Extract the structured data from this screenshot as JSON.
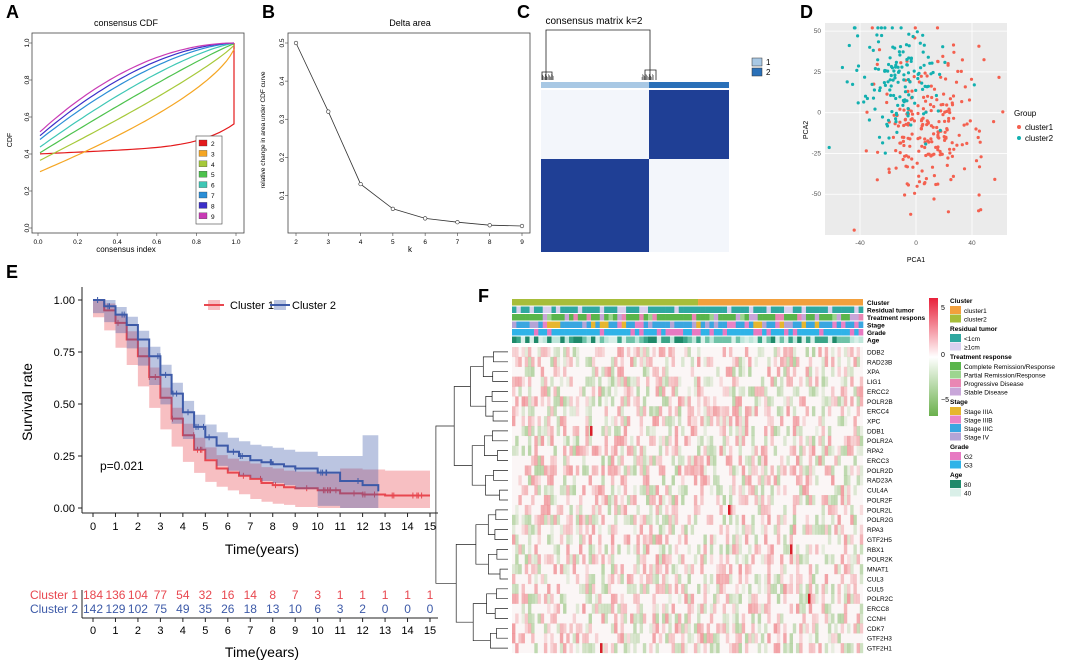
{
  "colors": {
    "cluster1": "#e8474f",
    "cluster2": "#3d5aa8",
    "pca1": "#f4604f",
    "pca2": "#13b0b0",
    "matrix": "#1f3f95",
    "matrixLight": "#a8c8e4",
    "hmRed": "#e84850",
    "hmGreen": "#6ab04c"
  },
  "panel_letters": {
    "A": "A",
    "B": "B",
    "C": "C",
    "D": "D",
    "E": "E",
    "F": "F"
  },
  "chart_data": [
    {
      "id": "A",
      "type": "line",
      "title": "consensus CDF",
      "xlabel": "consensus index",
      "ylabel": "CDF",
      "xlim": [
        0,
        1
      ],
      "ylim": [
        0,
        1
      ],
      "xticks": [
        "0.0",
        "0.2",
        "0.4",
        "0.6",
        "0.8",
        "1.0"
      ],
      "yticks": [
        "0.0",
        "0.2",
        "0.4",
        "0.6",
        "0.8",
        "1.0"
      ],
      "legend": [
        {
          "k": "2",
          "color": "#e41a1c"
        },
        {
          "k": "3",
          "color": "#f5a623"
        },
        {
          "k": "4",
          "color": "#a6c93a"
        },
        {
          "k": "5",
          "color": "#4dc24d"
        },
        {
          "k": "6",
          "color": "#3ec7b5"
        },
        {
          "k": "7",
          "color": "#2b8ed6"
        },
        {
          "k": "8",
          "color": "#3b2fc9"
        },
        {
          "k": "9",
          "color": "#c93bb5"
        }
      ],
      "series": [
        {
          "name": "2",
          "start": 0.4,
          "power": 0.4,
          "end": 0.58
        },
        {
          "name": "3",
          "start": 0.3,
          "power": 0.65,
          "end": 1.0
        },
        {
          "name": "4",
          "start": 0.36,
          "power": 0.85,
          "end": 1.0
        },
        {
          "name": "5",
          "start": 0.4,
          "power": 1.1,
          "end": 1.0
        },
        {
          "name": "6",
          "start": 0.43,
          "power": 1.35,
          "end": 1.0
        },
        {
          "name": "7",
          "start": 0.47,
          "power": 1.6,
          "end": 1.0
        },
        {
          "name": "8",
          "start": 0.49,
          "power": 1.8,
          "end": 1.0
        },
        {
          "name": "9",
          "start": 0.51,
          "power": 2.0,
          "end": 1.0
        }
      ]
    },
    {
      "id": "B",
      "type": "line",
      "title": "Delta area",
      "xlabel": "k",
      "ylabel": "relative change in area under CDF curve",
      "x": [
        2,
        3,
        4,
        5,
        6,
        7,
        8,
        9
      ],
      "y": [
        0.5,
        0.32,
        0.13,
        0.065,
        0.04,
        0.03,
        0.022,
        0.02
      ],
      "xlim": [
        2,
        9
      ],
      "ylim": [
        0.02,
        0.5
      ],
      "yticks": [
        "0.1",
        "0.2",
        "0.3",
        "0.4",
        "0.5"
      ],
      "xticks": [
        "2",
        "3",
        "4",
        "5",
        "6",
        "7",
        "8",
        "9"
      ]
    },
    {
      "id": "C",
      "type": "heatmap",
      "title": "consensus matrix k=2",
      "legend": [
        "1",
        "2"
      ],
      "cluster_fraction": [
        0.52,
        0.48
      ]
    },
    {
      "id": "D",
      "type": "scatter",
      "xlabel": "PCA1",
      "ylabel": "PCA2",
      "xticks": [
        "-40",
        "0",
        "40"
      ],
      "yticks": [
        "50",
        "25",
        "0",
        "-25",
        "-50"
      ],
      "xlim": [
        -65,
        65
      ],
      "ylim": [
        -75,
        55
      ],
      "legend_title": "Group",
      "groups": [
        {
          "name": "cluster1",
          "n": 230,
          "mean": [
            10,
            -8
          ],
          "sd": [
            20,
            22
          ]
        },
        {
          "name": "cluster2",
          "n": 150,
          "mean": [
            -12,
            20
          ],
          "sd": [
            17,
            17
          ]
        }
      ]
    },
    {
      "id": "E",
      "type": "line",
      "xlabel": "Time(years)",
      "ylabel": "Survival rate",
      "pvalue": "p=0.021",
      "xticks": [
        "0",
        "1",
        "2",
        "3",
        "4",
        "5",
        "6",
        "7",
        "8",
        "9",
        "10",
        "11",
        "12",
        "13",
        "14",
        "15"
      ],
      "yticks": [
        "0.00",
        "0.25",
        "0.50",
        "0.75",
        "1.00"
      ],
      "series": [
        {
          "name": "Cluster 1",
          "x": [
            0,
            0.5,
            1,
            1.5,
            2,
            2.5,
            3,
            3.5,
            4,
            4.5,
            5,
            5.5,
            6,
            6.5,
            7,
            7.5,
            8,
            8.5,
            9,
            10,
            11,
            12,
            13,
            15
          ],
          "y": [
            1.0,
            0.95,
            0.89,
            0.81,
            0.73,
            0.63,
            0.53,
            0.43,
            0.35,
            0.28,
            0.23,
            0.19,
            0.17,
            0.155,
            0.14,
            0.12,
            0.11,
            0.1,
            0.095,
            0.085,
            0.07,
            0.065,
            0.06,
            0.06
          ]
        },
        {
          "name": "Cluster 2",
          "x": [
            0,
            0.5,
            1,
            1.5,
            2,
            2.5,
            3,
            3.5,
            4,
            4.5,
            5,
            5.5,
            6,
            6.5,
            7,
            7.5,
            8,
            8.5,
            9,
            10,
            11,
            12,
            12.7
          ],
          "y": [
            1.0,
            0.97,
            0.93,
            0.88,
            0.81,
            0.73,
            0.64,
            0.55,
            0.46,
            0.39,
            0.34,
            0.3,
            0.27,
            0.25,
            0.23,
            0.22,
            0.21,
            0.2,
            0.19,
            0.17,
            0.13,
            0.11,
            0.08
          ]
        }
      ],
      "risk_table": {
        "rows": [
          {
            "label": "Cluster 1",
            "values": [
              "184",
              "136",
              "104",
              "77",
              "54",
              "32",
              "16",
              "14",
              "8",
              "7",
              "3",
              "1",
              "1",
              "1",
              "1",
              "1"
            ]
          },
          {
            "label": "Cluster 2",
            "values": [
              "142",
              "129",
              "102",
              "75",
              "49",
              "35",
              "26",
              "18",
              "13",
              "10",
              "6",
              "3",
              "2",
              "0",
              "0",
              "0"
            ]
          }
        ]
      }
    },
    {
      "id": "F",
      "type": "heatmap",
      "annotation_rows": [
        "Cluster",
        "Residual tumor",
        "Treatment respons",
        "Stage",
        "Grade",
        "Age"
      ],
      "genes": [
        "DDB2",
        "RAD23B",
        "XPA",
        "LIG1",
        "ERCC2",
        "POLR2B",
        "ERCC4",
        "XPC",
        "DDB1",
        "POLR2A",
        "RPA2",
        "ERCC3",
        "POLR2D",
        "RAD23A",
        "CUL4A",
        "POLR2F",
        "POLR2L",
        "POLR2G",
        "RPA3",
        "GTF2H5",
        "RBX1",
        "POLR2K",
        "MNAT1",
        "CUL3",
        "CUL5",
        "POLR2C",
        "ERCC8",
        "CCNH",
        "CDK7",
        "GTF2H3",
        "GTF2H1"
      ],
      "color_scale_ticks": [
        "5",
        "0",
        "−5"
      ],
      "legends": [
        {
          "title": "Cluster",
          "items": [
            {
              "label": "cluster1",
              "color": "#f2a03d"
            },
            {
              "label": "cluster2",
              "color": "#a7bd3a"
            }
          ]
        },
        {
          "title": "Residual tumor",
          "items": [
            {
              "label": "<1cm",
              "color": "#2fa8a0"
            },
            {
              "label": "≥1cm",
              "color": "#d9d0ef"
            }
          ]
        },
        {
          "title": "Treatment response",
          "items": [
            {
              "label": "Complete Remission/Response",
              "color": "#5ab54b"
            },
            {
              "label": "Partial Remission/Response",
              "color": "#9dd58f"
            },
            {
              "label": "Progressive Disease",
              "color": "#e987b4"
            },
            {
              "label": "Stable Disease",
              "color": "#c8a6d9"
            }
          ]
        },
        {
          "title": "Stage",
          "items": [
            {
              "label": "Stage IIIA",
              "color": "#e6b62f"
            },
            {
              "label": "Stage IIIB",
              "color": "#e983c6"
            },
            {
              "label": "Stage IIIC",
              "color": "#39a6e0"
            },
            {
              "label": "Stage IV",
              "color": "#b4a4d6"
            }
          ]
        },
        {
          "title": "Grade",
          "items": [
            {
              "label": "G2",
              "color": "#e77ac2"
            },
            {
              "label": "G3",
              "color": "#2fb3e8"
            }
          ]
        },
        {
          "title": "Age",
          "items": [
            {
              "label": "80",
              "color": "#1f8a6a"
            },
            {
              "label": "40",
              "color": "#d9efe8"
            }
          ]
        }
      ]
    }
  ]
}
